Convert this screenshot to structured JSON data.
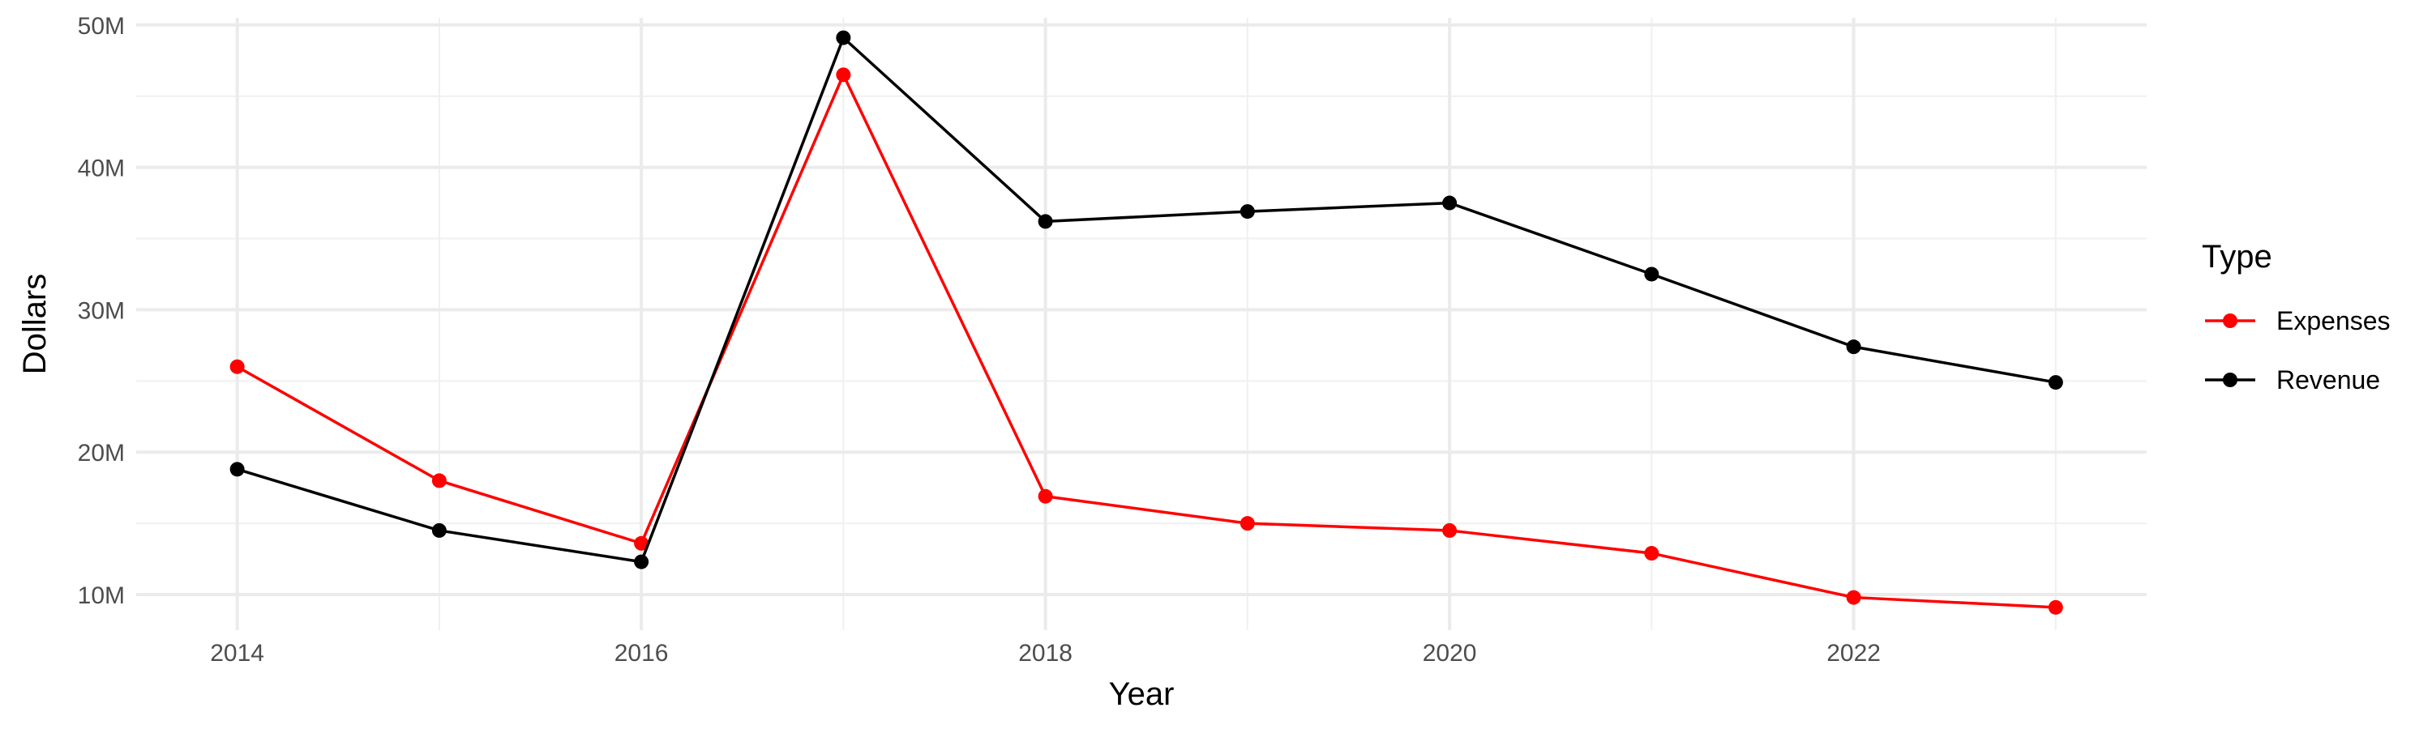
{
  "chart_data": {
    "type": "line",
    "title": "",
    "xlabel": "Year",
    "ylabel": "Dollars",
    "x": [
      2014,
      2015,
      2016,
      2017,
      2018,
      2019,
      2020,
      2021,
      2022,
      2023
    ],
    "xlim": [
      2013.5,
      2023.45
    ],
    "ylim": [
      7500000,
      50500000
    ],
    "x_ticks": [
      2014,
      2016,
      2018,
      2020,
      2022
    ],
    "x_tick_labels": [
      "2014",
      "2016",
      "2018",
      "2020",
      "2022"
    ],
    "y_ticks": [
      10000000,
      20000000,
      30000000,
      40000000,
      50000000
    ],
    "y_tick_labels": [
      "10M",
      "20M",
      "30M",
      "40M",
      "50M"
    ],
    "grid": true,
    "legend": {
      "title": "Type",
      "position": "right"
    },
    "series": [
      {
        "name": "Expenses",
        "color": "#ff0000",
        "values": [
          26000000,
          18000000,
          13600000,
          46500000,
          16900000,
          15000000,
          14500000,
          12900000,
          9800000,
          9100000
        ]
      },
      {
        "name": "Revenue",
        "color": "#000000",
        "values": [
          18800000,
          14500000,
          12300000,
          49100000,
          36200000,
          36900000,
          37500000,
          32500000,
          27400000,
          24900000
        ]
      }
    ]
  }
}
